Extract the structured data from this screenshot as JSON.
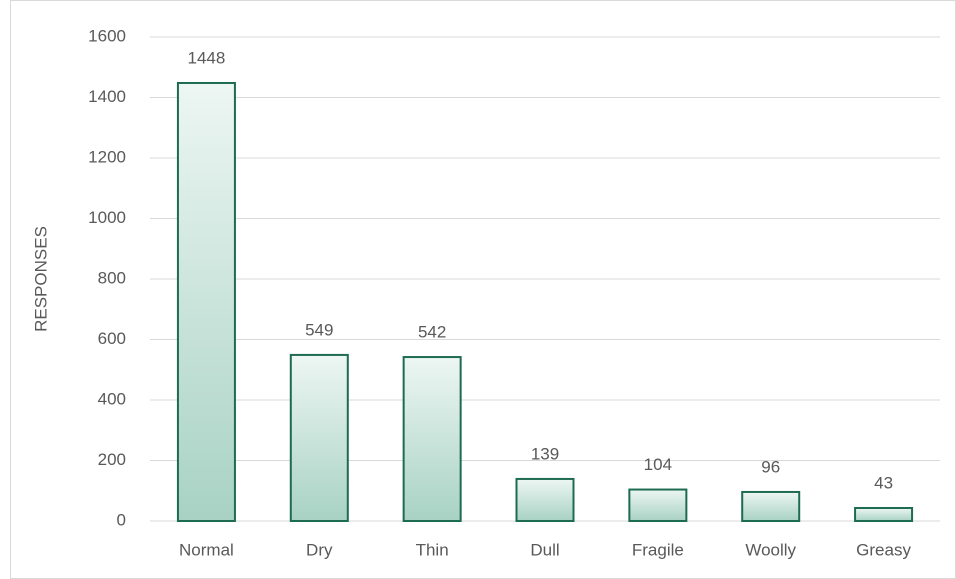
{
  "chart_data": {
    "type": "bar",
    "y_label": "RESPONSES",
    "categories": [
      "Normal",
      "Dry",
      "Thin",
      "Dull",
      "Fragile",
      "Woolly",
      "Greasy"
    ],
    "values": [
      1448,
      549,
      542,
      139,
      104,
      96,
      43
    ],
    "color": "#1d6b50",
    "ylim": [
      0,
      1600
    ],
    "yticks": [
      0,
      200,
      400,
      600,
      800,
      1000,
      1200,
      1400,
      1600
    ],
    "grid": true
  }
}
